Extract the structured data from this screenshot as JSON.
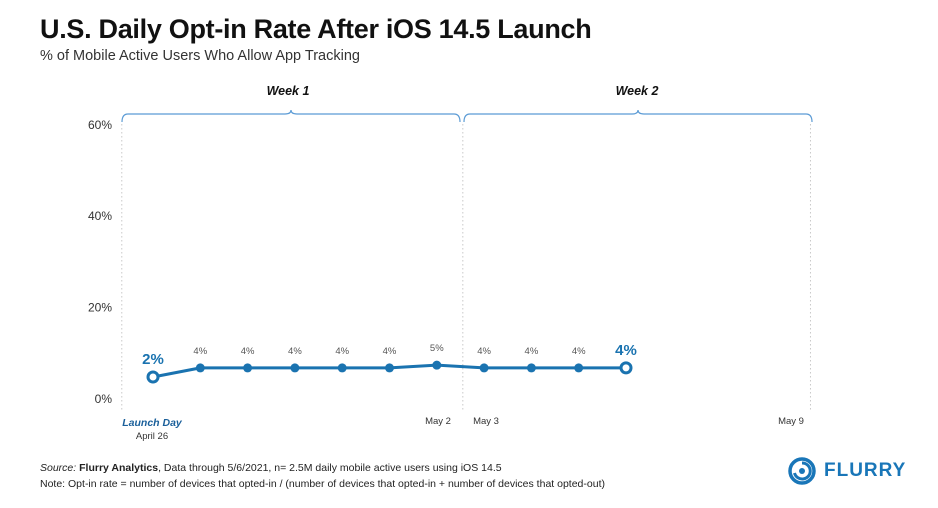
{
  "header": {
    "title": "U.S. Daily Opt-in Rate After iOS 14.5 Launch",
    "subtitle": "% of Mobile Active Users Who Allow App Tracking"
  },
  "chart_data": {
    "type": "line",
    "title": "U.S. Daily Opt-in Rate After iOS 14.5 Launch",
    "subtitle": "% of Mobile Active Users Who Allow App Tracking",
    "xlabel": "",
    "ylabel": "",
    "ylim": [
      0,
      60
    ],
    "grid": false,
    "y_ticks": [
      "0%",
      "20%",
      "40%",
      "60%"
    ],
    "y_tick_values": [
      0,
      20,
      40,
      60
    ],
    "x_tick_labels": [
      {
        "day": 0,
        "label": "Launch Day",
        "sublabel": "April 26"
      },
      {
        "day": 6,
        "label": "May 2"
      },
      {
        "day": 7,
        "label": "May 3"
      },
      {
        "day": 13,
        "label": "May 9"
      }
    ],
    "period_brackets": [
      {
        "label": "Week 1",
        "start_day": 0,
        "end_day": 6.9
      },
      {
        "label": "Week 2",
        "start_day": 7.1,
        "end_day": 13.9
      }
    ],
    "series": [
      {
        "name": "Opt-in rate",
        "days": [
          0,
          1,
          2,
          3,
          4,
          5,
          6,
          7,
          8,
          9,
          10
        ],
        "values": [
          2.4,
          4.4,
          4.4,
          4.4,
          4.4,
          4.4,
          5,
          4.4,
          4.4,
          4.4,
          4.4
        ],
        "data_labels": [
          "2%",
          "4%",
          "4%",
          "4%",
          "4%",
          "4%",
          "5%",
          "4%",
          "4%",
          "4%",
          "4%"
        ],
        "highlighted_points": [
          0,
          10
        ]
      }
    ],
    "colors": {
      "line": "#1a73b0",
      "axis_text": "#333333",
      "bracket": "#5b9bd5",
      "guide": "#c8c8c8"
    }
  },
  "footer": {
    "source_label": "Source:",
    "source_name": "Flurry Analytics",
    "source_rest": ", Data through 5/6/2021, n= 2.5M daily mobile active users using iOS 14.5",
    "note": "Note: Opt-in rate = number of devices that opted-in / (number of devices that opted-in + number of devices that opted-out)"
  },
  "logo": {
    "text": "FLURRY",
    "icon": "flurry-swirl-icon",
    "color": "#1976b8"
  }
}
